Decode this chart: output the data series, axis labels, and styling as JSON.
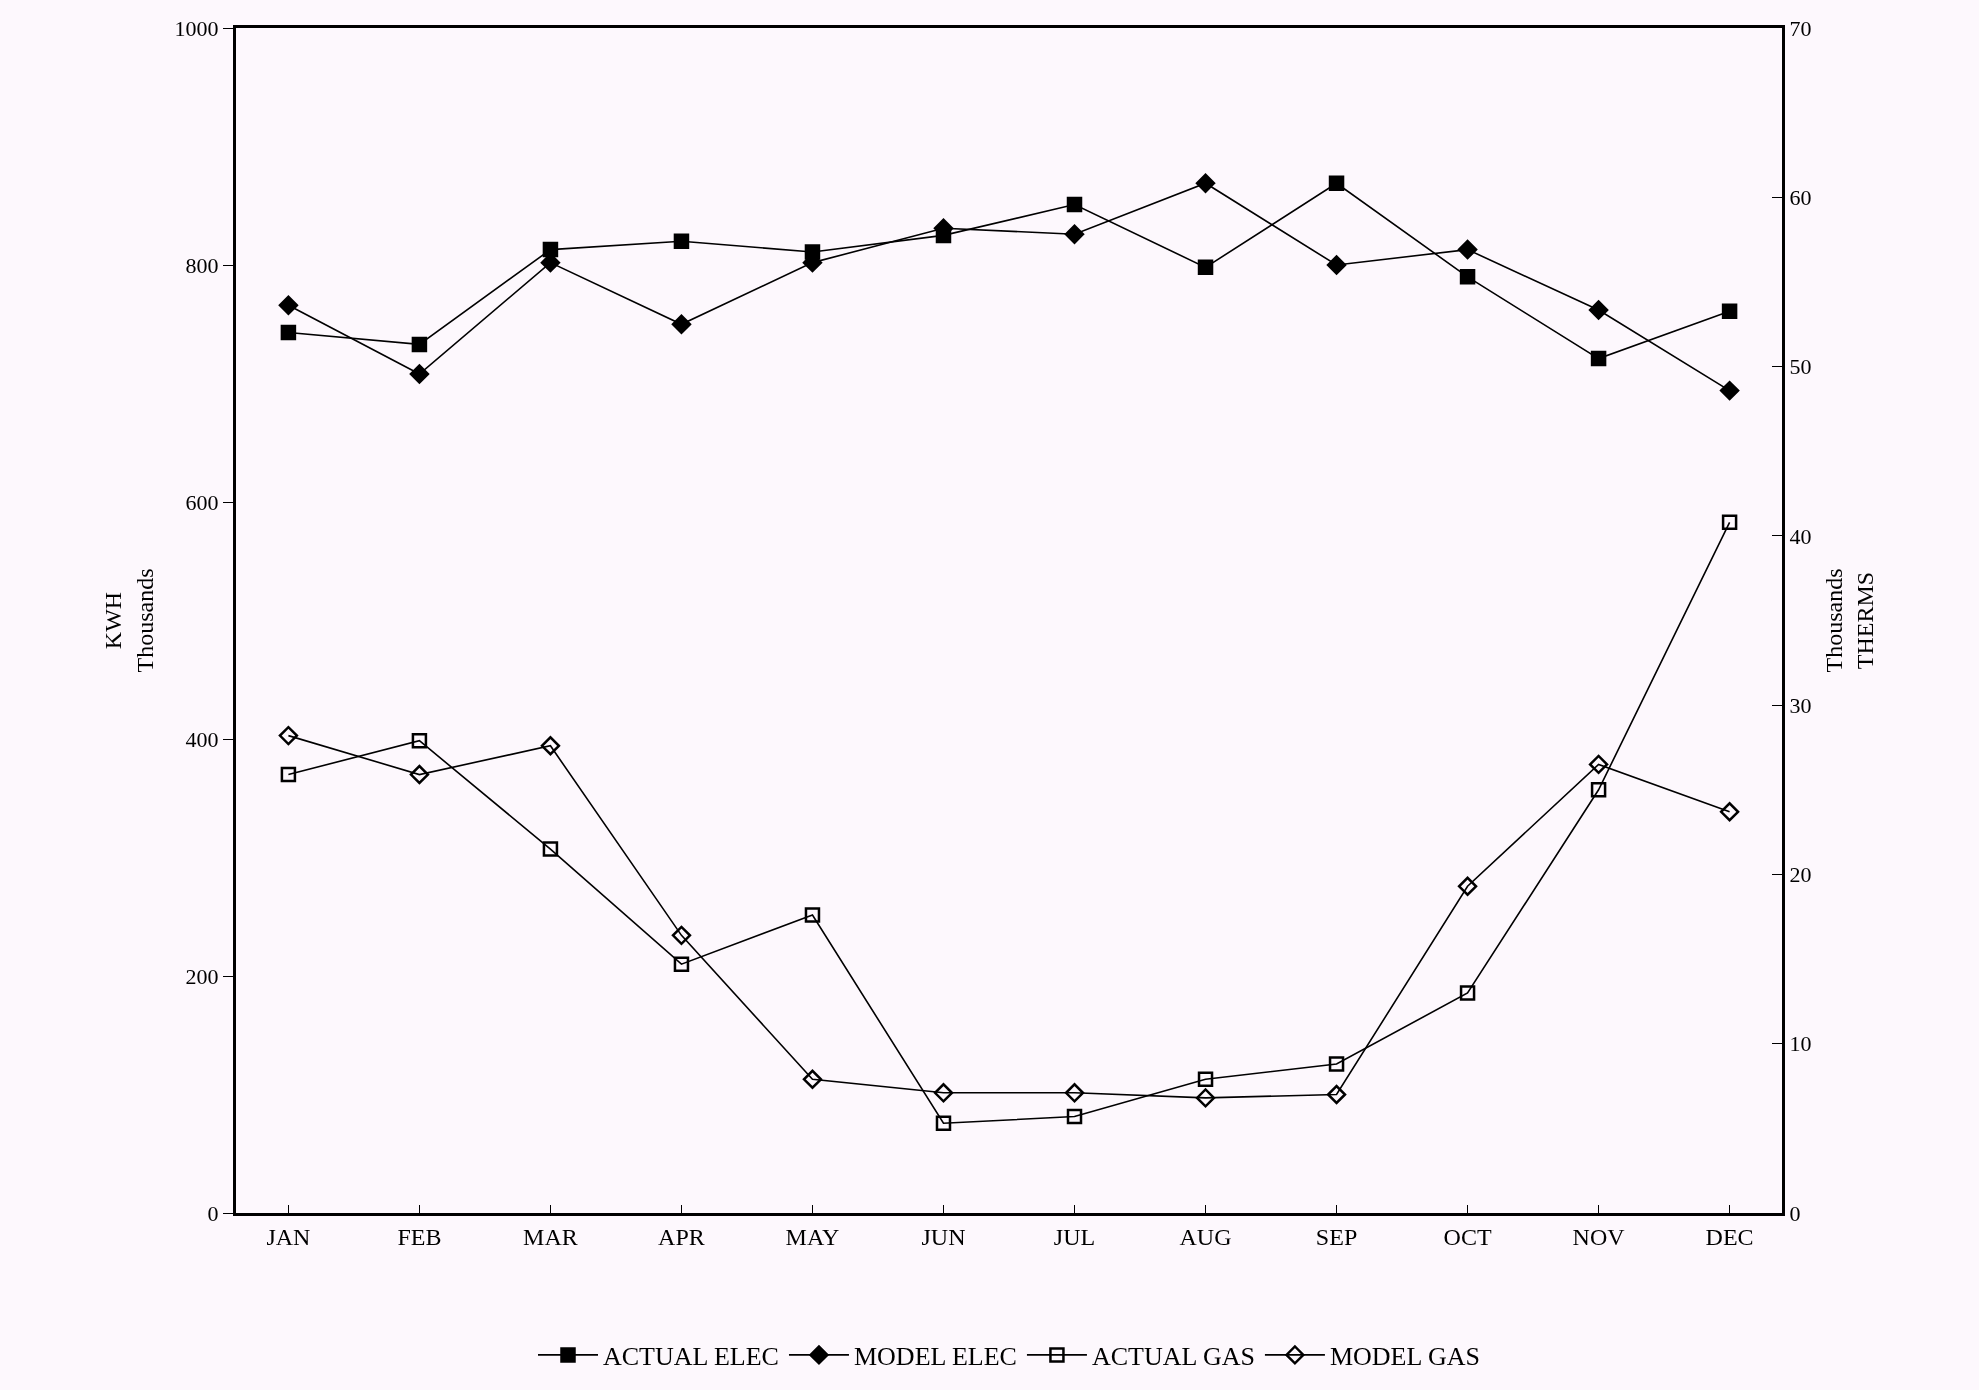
{
  "chart_data": {
    "type": "line",
    "categories": [
      "JAN",
      "FEB",
      "MAR",
      "APR",
      "MAY",
      "JUN",
      "JUL",
      "AUG",
      "SEP",
      "OCT",
      "NOV",
      "DEC"
    ],
    "ylabel": "KWH\nThousands",
    "y2label": "Thousands\nTHERMS",
    "ylim": [
      0,
      1000
    ],
    "yticks": [
      0,
      200,
      400,
      600,
      800,
      1000
    ],
    "y2lim": [
      0,
      70
    ],
    "y2ticks": [
      0,
      10,
      20,
      30,
      40,
      50,
      60,
      70
    ],
    "grid": false,
    "legend": "bottom",
    "line_style": "solid",
    "series": [
      {
        "name": "ACTUAL ELEC",
        "color": "#000000",
        "marker": "square",
        "values": [
          743,
          733,
          813,
          820,
          811,
          825,
          851,
          798,
          869,
          790,
          721,
          761
        ]
      },
      {
        "name": "MODEL ELEC",
        "color": "#000000",
        "marker": "diamond",
        "values": [
          766,
          708,
          802,
          750,
          802,
          831,
          826,
          869,
          800,
          813,
          762,
          694
        ]
      },
      {
        "name": "ACTUAL GAS",
        "color": "#000000",
        "marker": "square-open",
        "axis": "y2",
        "values": [
          25.9,
          27.9,
          21.5,
          14.7,
          17.6,
          5.3,
          5.7,
          7.9,
          8.8,
          13.0,
          25.0,
          40.8
        ]
      },
      {
        "name": "MODEL GAS",
        "color": "#000000",
        "marker": "diamond-open",
        "axis": "y2",
        "values": [
          28.2,
          25.9,
          27.6,
          16.4,
          7.9,
          7.1,
          7.1,
          6.8,
          7.0,
          19.3,
          26.5,
          23.7
        ]
      }
    ]
  }
}
